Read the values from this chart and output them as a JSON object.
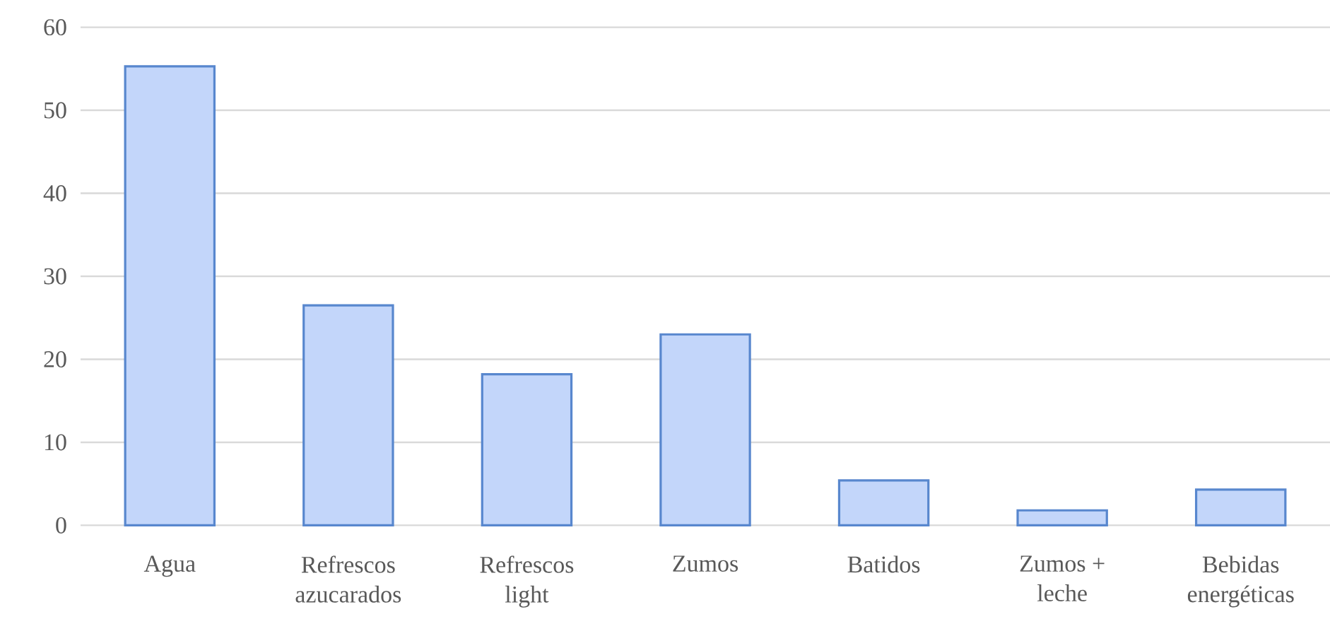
{
  "chart_data": {
    "type": "bar",
    "categories": [
      "Agua",
      "Refrescos azucarados",
      "Refrescos light",
      "Zumos",
      "Batidos",
      "Zumos + leche",
      "Bebidas energéticas"
    ],
    "values": [
      55.3,
      26.5,
      18.2,
      23.0,
      5.4,
      1.8,
      4.3
    ],
    "color": "#c3d6fa",
    "ylim": [
      0,
      60
    ],
    "yticks": [
      0,
      10,
      20,
      30,
      40,
      50,
      60
    ],
    "grid": "y"
  }
}
